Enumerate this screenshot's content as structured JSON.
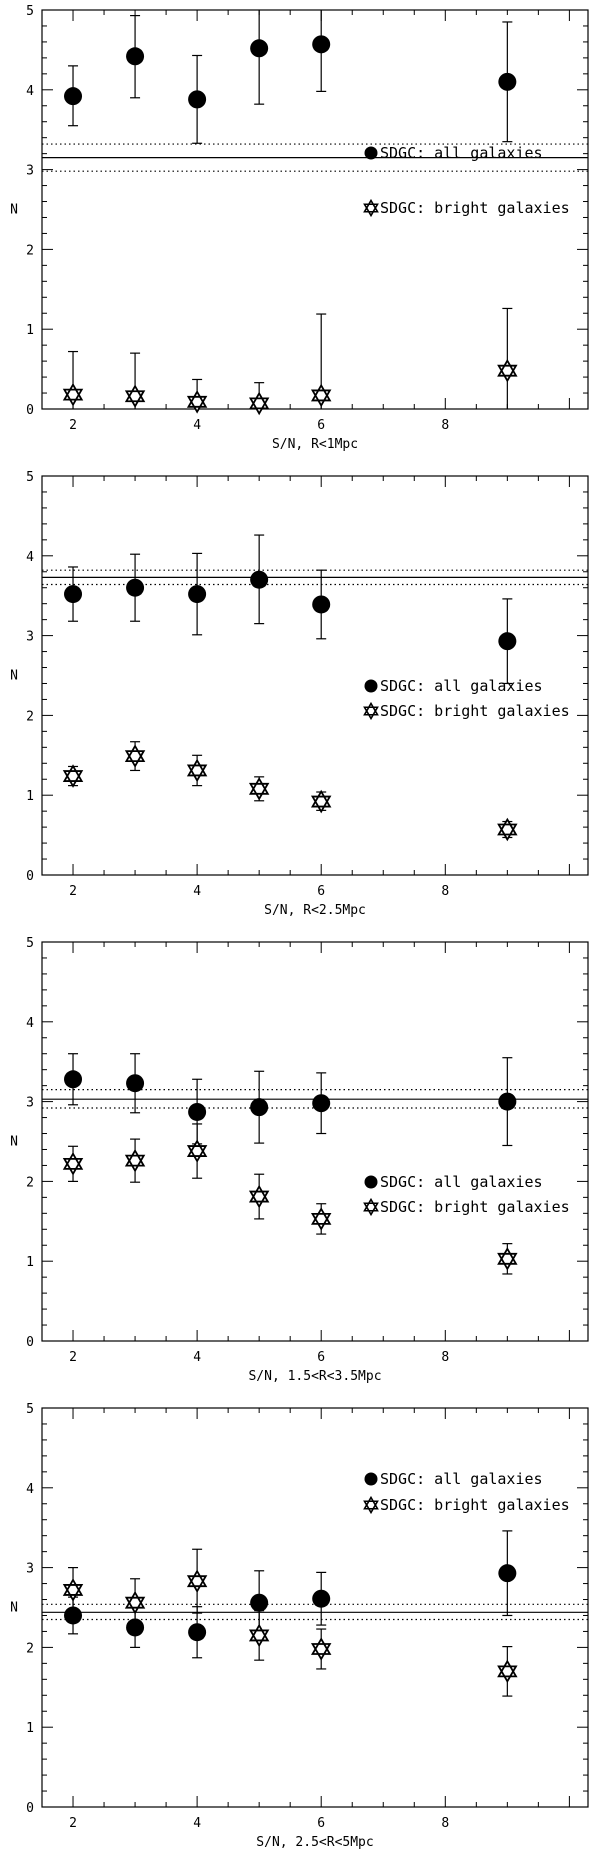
{
  "chart_data": [
    {
      "type": "scatter",
      "xlabel": "S/N, R<1Mpc",
      "ylabel": "N",
      "xlim": [
        1.5,
        10.3
      ],
      "ylim": [
        0,
        5
      ],
      "xticks": [
        2,
        4,
        6,
        8
      ],
      "yticks": [
        0,
        1,
        2,
        3,
        4,
        5
      ],
      "legend_position": "upper-right",
      "reference_lines": {
        "solid": 3.15,
        "dotted": [
          2.98,
          3.32
        ]
      },
      "series": [
        {
          "name": "SDGC: all galaxies",
          "marker": "filled-circle",
          "x": [
            2,
            3,
            4,
            5,
            6,
            9
          ],
          "y": [
            3.92,
            4.42,
            3.88,
            4.52,
            4.57,
            4.1
          ],
          "err_low": [
            3.55,
            3.9,
            3.33,
            3.82,
            3.98,
            3.35
          ],
          "err_high": [
            4.3,
            4.93,
            4.43,
            5.0,
            5.0,
            4.85
          ]
        },
        {
          "name": "SDGC: bright galaxies",
          "marker": "open-star",
          "x": [
            2,
            3,
            4,
            5,
            6,
            9
          ],
          "y": [
            0.18,
            0.16,
            0.09,
            0.07,
            0.17,
            0.48
          ],
          "err_low": [
            0,
            0,
            0,
            0,
            0,
            0
          ],
          "err_high": [
            0.72,
            0.7,
            0.37,
            0.33,
            1.19,
            1.26
          ]
        }
      ]
    },
    {
      "type": "scatter",
      "xlabel": "S/N, R<2.5Mpc",
      "ylabel": "N",
      "xlim": [
        1.5,
        10.3
      ],
      "ylim": [
        0,
        5
      ],
      "xticks": [
        2,
        4,
        6,
        8
      ],
      "yticks": [
        0,
        1,
        2,
        3,
        4,
        5
      ],
      "legend_position": "middle-right",
      "reference_lines": {
        "solid": 3.73,
        "dotted": [
          3.64,
          3.82
        ]
      },
      "series": [
        {
          "name": "SDGC: all galaxies",
          "marker": "filled-circle",
          "x": [
            2,
            3,
            4,
            5,
            6,
            9
          ],
          "y": [
            3.52,
            3.6,
            3.52,
            3.7,
            3.39,
            2.93
          ],
          "err_low": [
            3.18,
            3.18,
            3.01,
            3.15,
            2.96,
            2.4
          ],
          "err_high": [
            3.86,
            4.02,
            4.03,
            4.26,
            3.82,
            3.46
          ]
        },
        {
          "name": "SDGC: bright galaxies",
          "marker": "open-star",
          "x": [
            2,
            3,
            4,
            5,
            6,
            9
          ],
          "y": [
            1.24,
            1.49,
            1.31,
            1.08,
            0.92,
            0.57
          ],
          "err_low": [
            1.12,
            1.31,
            1.12,
            0.93,
            0.81,
            0.47
          ],
          "err_high": [
            1.36,
            1.67,
            1.5,
            1.23,
            1.04,
            0.67
          ]
        }
      ]
    },
    {
      "type": "scatter",
      "xlabel": "S/N, 1.5<R<3.5Mpc",
      "ylabel": "N",
      "xlim": [
        1.5,
        10.3
      ],
      "ylim": [
        0,
        5
      ],
      "xticks": [
        2,
        4,
        6,
        8
      ],
      "yticks": [
        0,
        1,
        2,
        3,
        4,
        5
      ],
      "legend_position": "middle-right",
      "reference_lines": {
        "solid": 3.03,
        "dotted": [
          2.92,
          3.15
        ]
      },
      "series": [
        {
          "name": "SDGC: all galaxies",
          "marker": "filled-circle",
          "x": [
            2,
            3,
            4,
            5,
            6,
            9
          ],
          "y": [
            3.28,
            3.23,
            2.87,
            2.93,
            2.98,
            3.0
          ],
          "err_low": [
            2.96,
            2.86,
            2.47,
            2.48,
            2.6,
            2.45
          ],
          "err_high": [
            3.6,
            3.6,
            3.28,
            3.38,
            3.36,
            3.55
          ]
        },
        {
          "name": "SDGC: bright galaxies",
          "marker": "open-star",
          "x": [
            2,
            3,
            4,
            5,
            6,
            9
          ],
          "y": [
            2.22,
            2.26,
            2.38,
            1.81,
            1.53,
            1.03
          ],
          "err_low": [
            2.0,
            1.99,
            2.04,
            1.53,
            1.34,
            0.84
          ],
          "err_high": [
            2.44,
            2.53,
            2.72,
            2.09,
            1.72,
            1.22
          ]
        }
      ]
    },
    {
      "type": "scatter",
      "xlabel": "S/N, 2.5<R<5Mpc",
      "ylabel": "N",
      "xlim": [
        1.5,
        10.3
      ],
      "ylim": [
        0,
        5
      ],
      "xticks": [
        2,
        4,
        6,
        8
      ],
      "yticks": [
        0,
        1,
        2,
        3,
        4,
        5
      ],
      "legend_position": "upper-right",
      "reference_lines": {
        "solid": 2.44,
        "dotted": [
          2.35,
          2.54
        ]
      },
      "series": [
        {
          "name": "SDGC: all galaxies",
          "marker": "filled-circle",
          "x": [
            2,
            3,
            4,
            5,
            6,
            9
          ],
          "y": [
            2.4,
            2.25,
            2.19,
            2.56,
            2.61,
            2.93
          ],
          "err_low": [
            2.17,
            2.0,
            1.87,
            2.16,
            2.28,
            2.4
          ],
          "err_high": [
            2.63,
            2.5,
            2.51,
            2.96,
            2.94,
            3.46
          ]
        },
        {
          "name": "SDGC: bright galaxies",
          "marker": "open-star",
          "x": [
            2,
            3,
            4,
            5,
            6,
            9
          ],
          "y": [
            2.72,
            2.56,
            2.83,
            2.15,
            1.98,
            1.7
          ],
          "err_low": [
            2.43,
            2.26,
            2.43,
            1.84,
            1.73,
            1.39
          ],
          "err_high": [
            3.0,
            2.86,
            3.23,
            2.46,
            2.23,
            2.01
          ]
        }
      ]
    }
  ]
}
